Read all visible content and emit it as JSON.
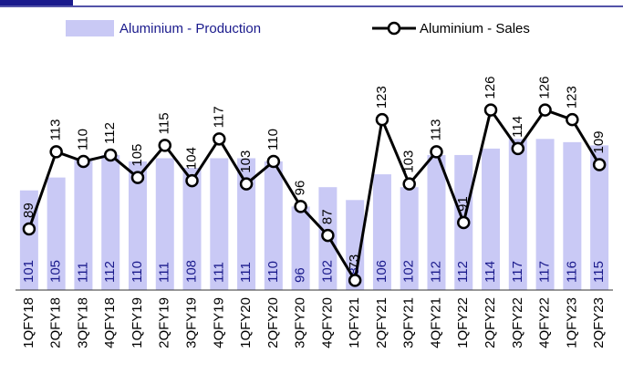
{
  "chart_data": {
    "type": "bar+line",
    "categories": [
      "1QFY18",
      "2QFY18",
      "3QFY18",
      "4QFY18",
      "1QFY19",
      "2QFY19",
      "3QFY19",
      "4QFY19",
      "1QFY20",
      "2QFY20",
      "3QFY20",
      "4QFY20",
      "1QFY21",
      "2QFY21",
      "3QFY21",
      "4QFY21",
      "1QFY22",
      "2QFY22",
      "3QFY22",
      "4QFY22",
      "1QFY23",
      "2QFY23"
    ],
    "series": [
      {
        "name": "Aluminium  - Production",
        "type": "bar",
        "color": "#c9c9f5",
        "label_color": "#1a1a8c",
        "values": [
          101,
          105,
          111,
          112,
          110,
          111,
          108,
          111,
          111,
          110,
          96,
          102,
          98,
          106,
          102,
          112,
          112,
          114,
          117,
          117,
          116,
          115
        ]
      },
      {
        "name": "Aluminium  - Sales",
        "type": "line",
        "color": "#000000",
        "values": [
          89,
          113,
          110,
          112,
          105,
          115,
          104,
          117,
          103,
          110,
          96,
          87,
          73,
          123,
          103,
          113,
          91,
          126,
          114,
          126,
          123,
          109
        ]
      }
    ],
    "ylim": [
      70,
      150
    ]
  }
}
